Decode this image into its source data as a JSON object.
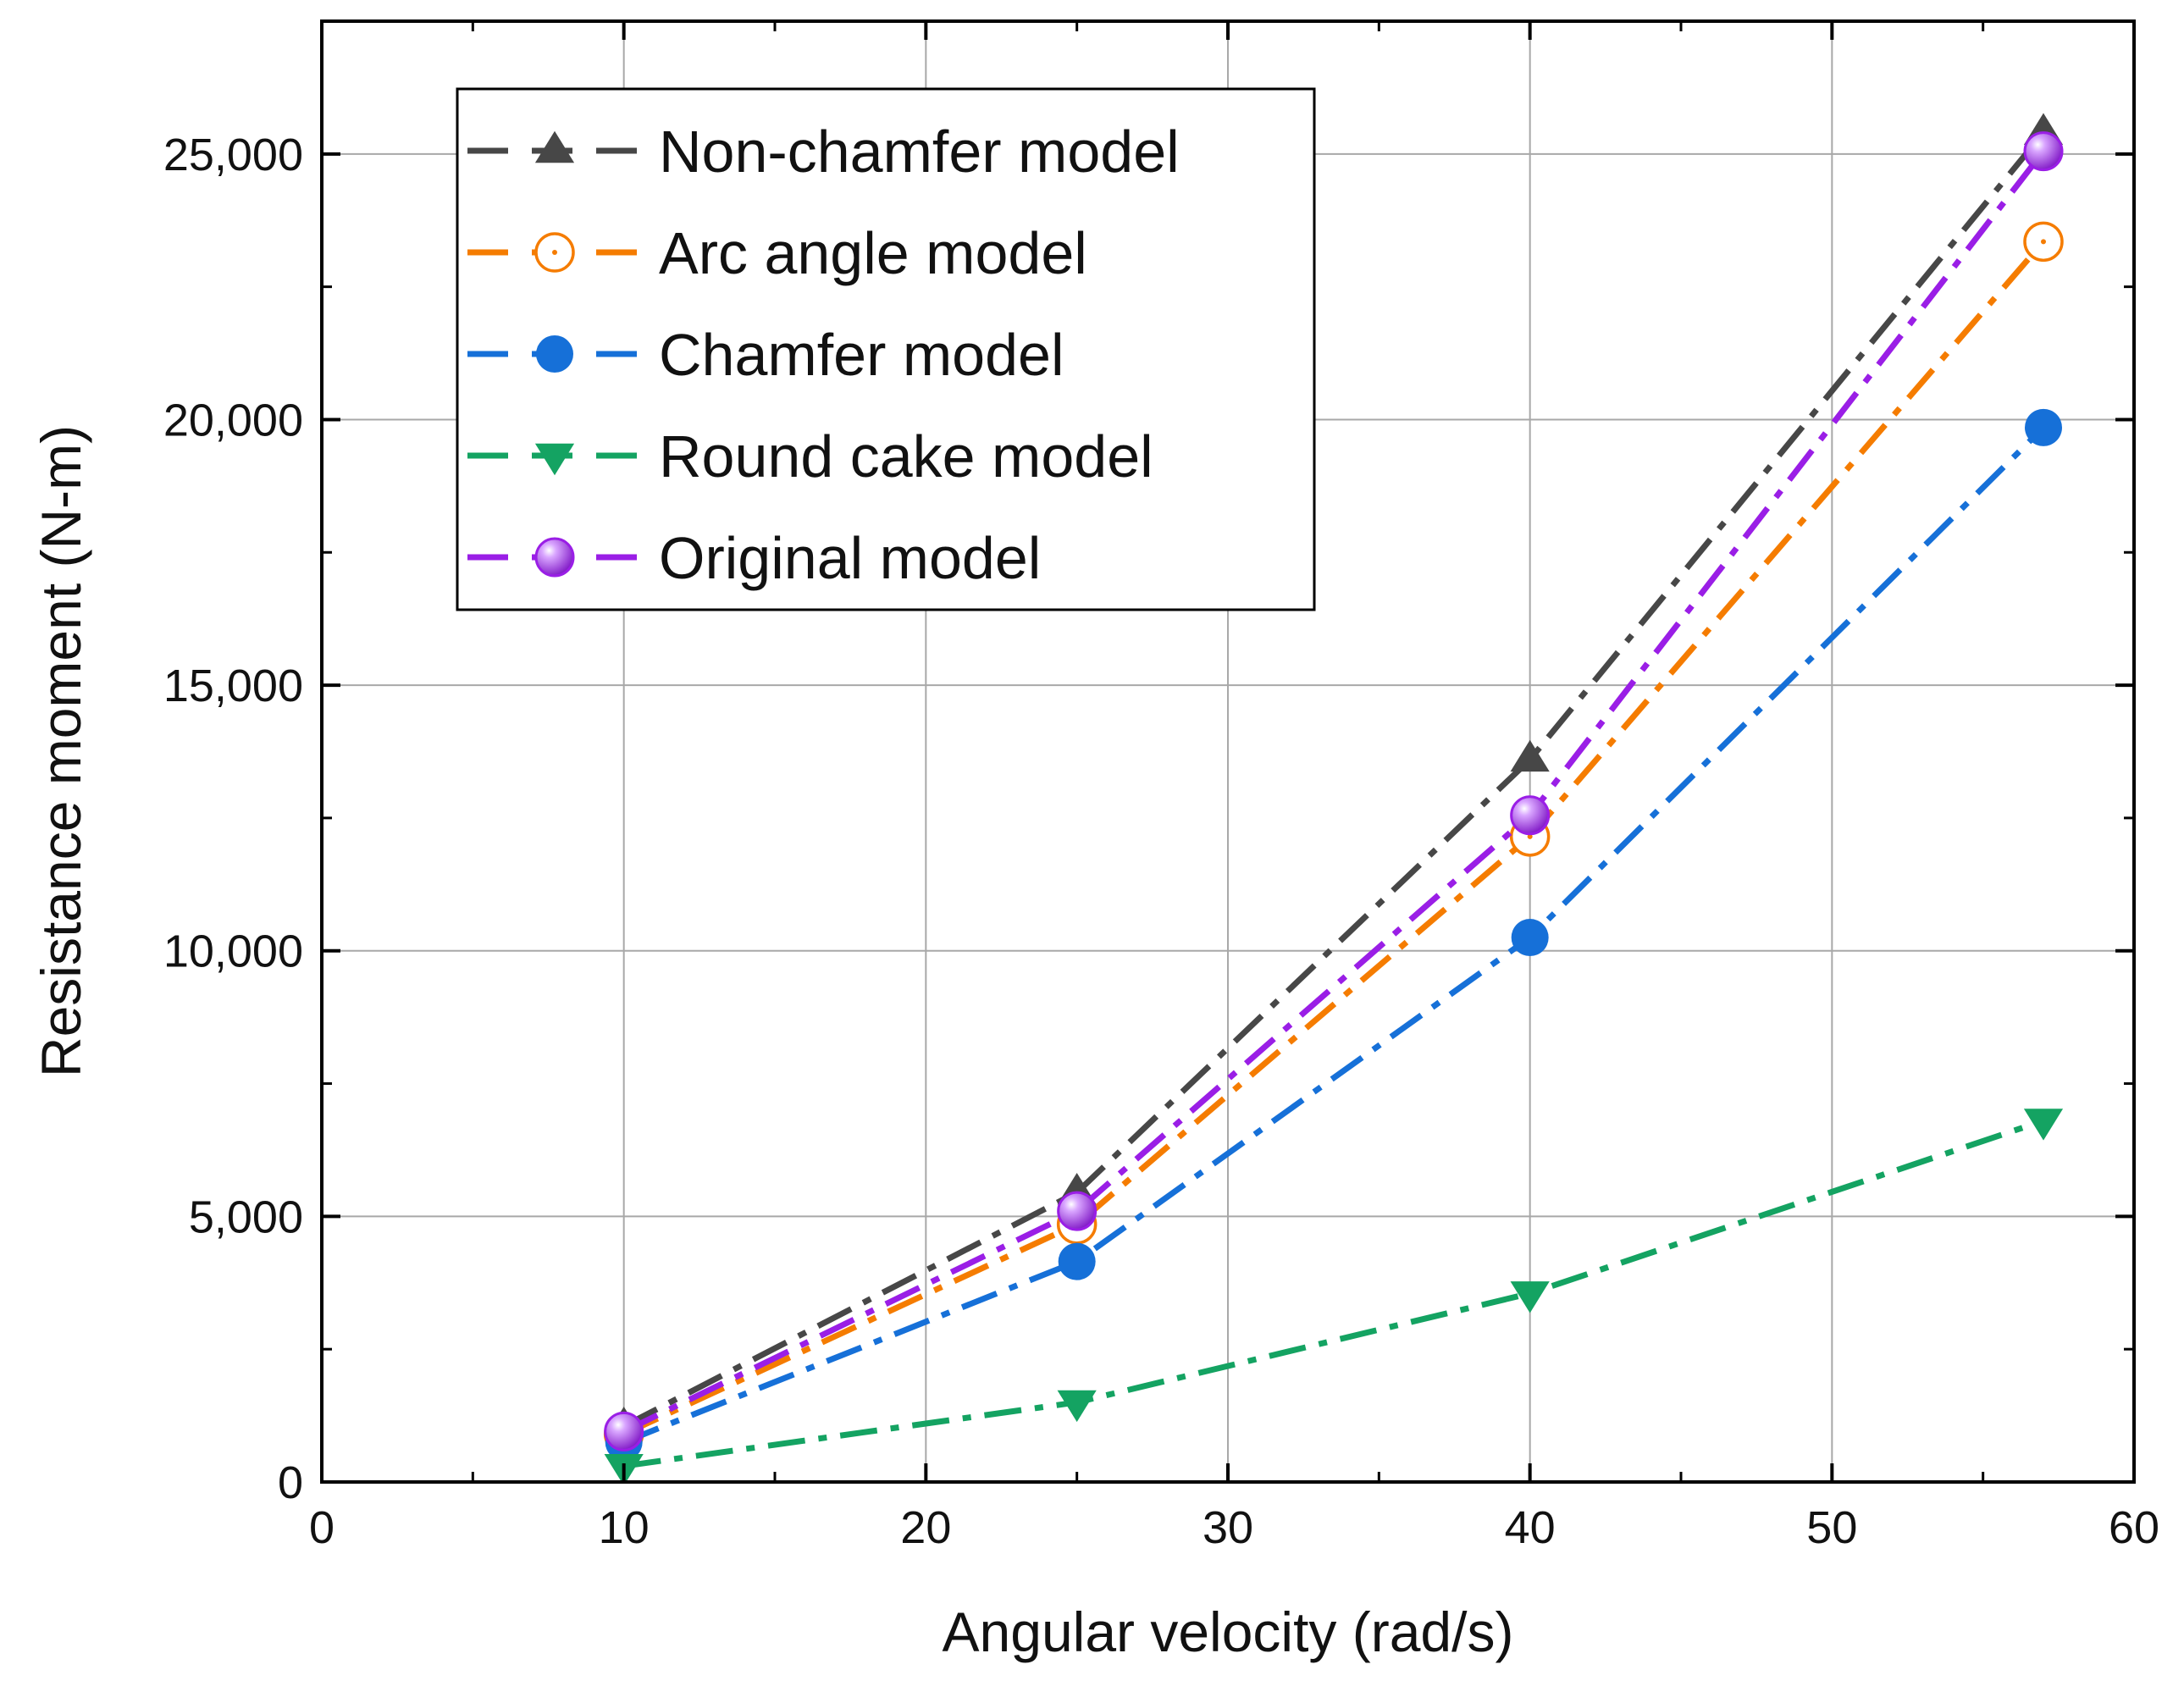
{
  "chart_data": {
    "type": "line",
    "xlabel": "Angular velocity (rad/s)",
    "ylabel": "Resistance moment (N-m)",
    "xlim": [
      0,
      60
    ],
    "ylim": [
      0,
      27500
    ],
    "x_ticks": [
      0,
      10,
      20,
      30,
      40,
      50,
      60
    ],
    "x_tick_labels": [
      "0",
      "10",
      "20",
      "30",
      "40",
      "50",
      "60"
    ],
    "y_ticks": [
      0,
      5000,
      10000,
      15000,
      20000,
      25000
    ],
    "y_tick_labels": [
      "0",
      "5,000",
      "10,000",
      "15,000",
      "20,000",
      "25,000"
    ],
    "grid": true,
    "legend_position": "top-left",
    "x": [
      10,
      25,
      40,
      57
    ],
    "series": [
      {
        "name": "Non-chamfer model",
        "values": [
          1050,
          5450,
          13600,
          25400
        ],
        "color": "#474747",
        "marker": "triangle-up",
        "dash": "dash-dot"
      },
      {
        "name": "Arc angle model",
        "values": [
          900,
          4850,
          12150,
          23350
        ],
        "color": "#f57c00",
        "marker": "circle-open",
        "dash": "dash-dot"
      },
      {
        "name": "Chamfer model",
        "values": [
          750,
          4150,
          10250,
          19850
        ],
        "color": "#1670d8",
        "marker": "circle",
        "dash": "dash-dot"
      },
      {
        "name": "Round cake model",
        "values": [
          300,
          1500,
          3550,
          6800
        ],
        "color": "#14a362",
        "marker": "triangle-down",
        "dash": "dash-dot"
      },
      {
        "name": "Original model",
        "values": [
          950,
          5100,
          12550,
          25050
        ],
        "color": "#9a1ee6",
        "marker": "sphere",
        "dash": "dash-dot"
      }
    ]
  }
}
